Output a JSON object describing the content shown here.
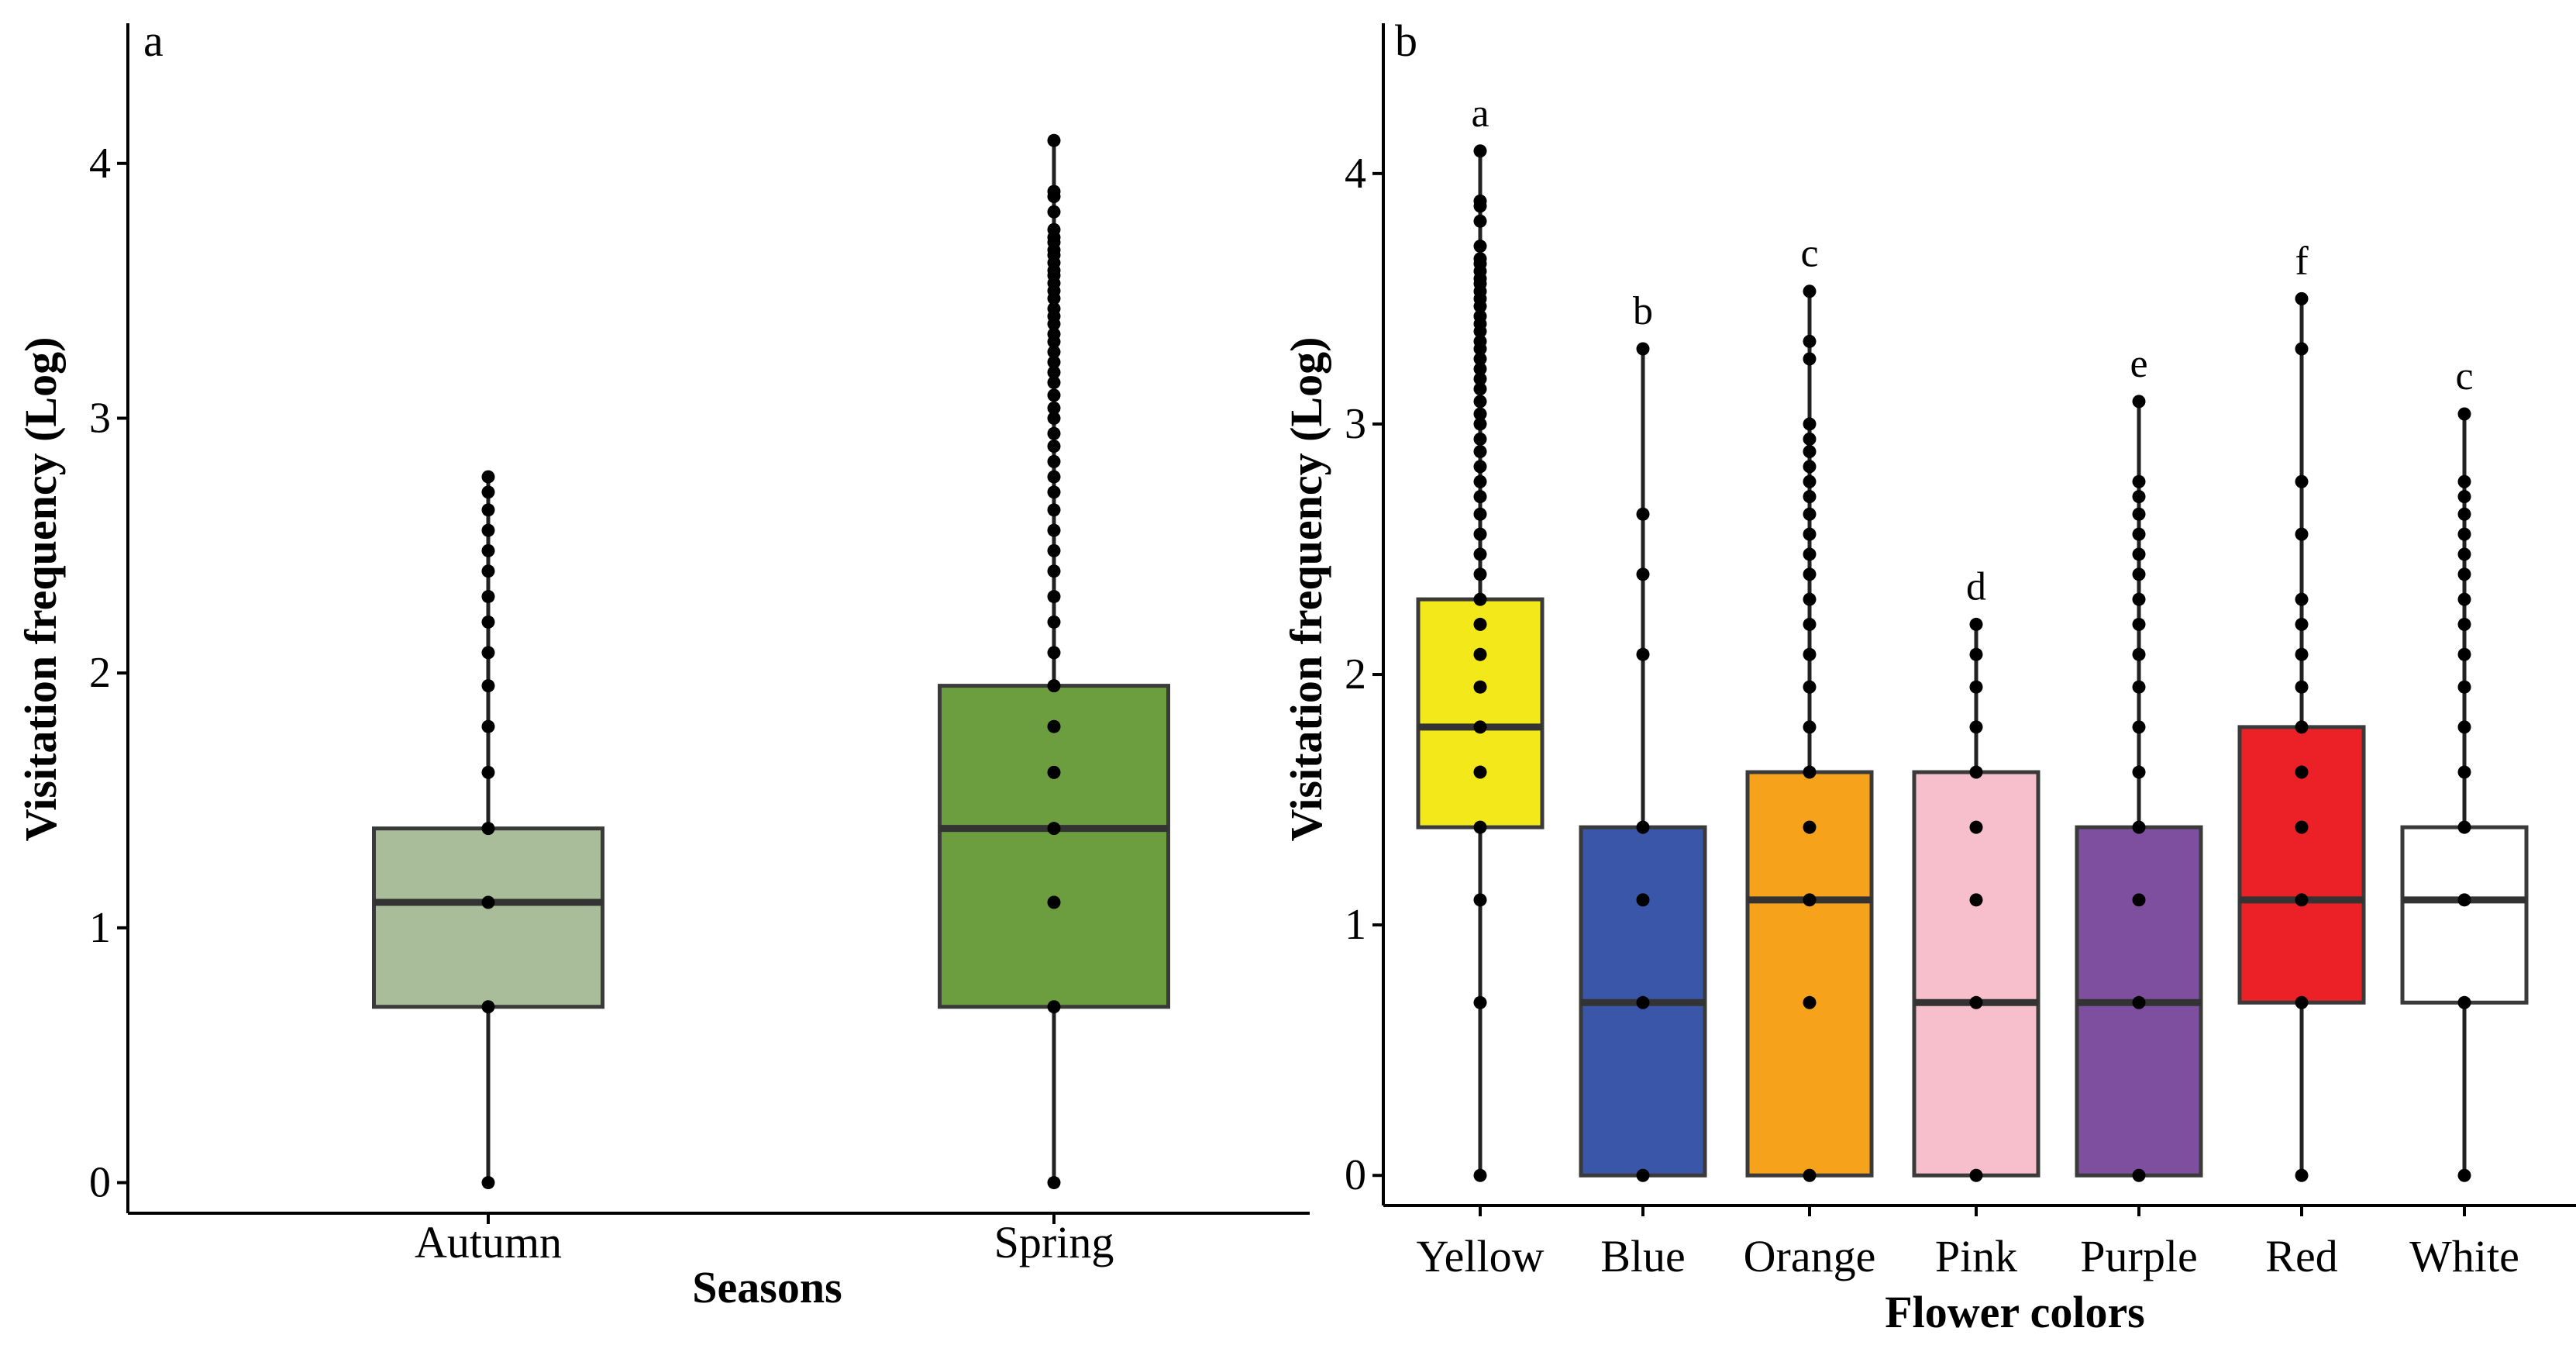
{
  "chart_data": [
    {
      "type": "boxplot",
      "panel_label": "a",
      "xlabel": "Seasons",
      "ylabel": "Visitation frequency (Log)",
      "ylim": [
        -0.12,
        4.55
      ],
      "yticks": [
        0,
        1,
        2,
        3,
        4
      ],
      "categories": [
        "Autumn",
        "Spring"
      ],
      "boxes": [
        {
          "category": "Autumn",
          "color": "#aabd9b",
          "whisker_low": 0.0,
          "q1": 0.69,
          "median": 1.1,
          "q3": 1.39,
          "whisker_high": 2.77,
          "letter": ""
        },
        {
          "category": "Spring",
          "color": "#6c9e3f",
          "whisker_low": 0.0,
          "q1": 0.69,
          "median": 1.39,
          "q3": 1.95,
          "whisker_high": 4.09,
          "letter": ""
        }
      ],
      "points": [
        [
          0.0,
          0.69,
          1.1,
          1.39,
          1.61,
          1.79,
          1.95,
          2.08,
          2.2,
          2.3,
          2.4,
          2.48,
          2.56,
          2.64,
          2.71,
          2.77
        ],
        [
          0.0,
          0.69,
          1.1,
          1.39,
          1.61,
          1.79,
          1.95,
          2.08,
          2.2,
          2.3,
          2.4,
          2.48,
          2.56,
          2.64,
          2.71,
          2.77,
          2.83,
          2.89,
          2.94,
          3.0,
          3.04,
          3.09,
          3.14,
          3.18,
          3.22,
          3.26,
          3.3,
          3.33,
          3.37,
          3.4,
          3.43,
          3.47,
          3.5,
          3.53,
          3.56,
          3.58,
          3.61,
          3.64,
          3.66,
          3.69,
          3.71,
          3.74,
          3.81,
          3.87,
          3.89,
          4.09
        ]
      ]
    },
    {
      "type": "boxplot",
      "panel_label": "b",
      "xlabel": "Flower colors",
      "ylabel": "Visitation frequency (Log)",
      "ylim": [
        -0.12,
        4.6
      ],
      "yticks": [
        0,
        1,
        2,
        3,
        4
      ],
      "categories": [
        "Yellow",
        "Blue",
        "Orange",
        "Pink",
        "Purple",
        "Red",
        "White"
      ],
      "boxes": [
        {
          "category": "Yellow",
          "color": "#f2e81a",
          "whisker_low": 0.0,
          "q1": 1.39,
          "median": 1.79,
          "q3": 2.3,
          "whisker_high": 4.09,
          "letter": "a"
        },
        {
          "category": "Blue",
          "color": "#3a56a8",
          "whisker_low": 0.0,
          "q1": 0.0,
          "median": 0.69,
          "q3": 1.39,
          "whisker_high": 3.3,
          "letter": "b"
        },
        {
          "category": "Orange",
          "color": "#f7a21b",
          "whisker_low": 0.0,
          "q1": 0.0,
          "median": 1.1,
          "q3": 1.61,
          "whisker_high": 3.53,
          "letter": "c"
        },
        {
          "category": "Pink",
          "color": "#f7bfcc",
          "whisker_low": 0.0,
          "q1": 0.0,
          "median": 0.69,
          "q3": 1.61,
          "whisker_high": 2.2,
          "letter": "d"
        },
        {
          "category": "Purple",
          "color": "#7f4f9f",
          "whisker_low": 0.0,
          "q1": 0.0,
          "median": 0.69,
          "q3": 1.39,
          "whisker_high": 3.09,
          "letter": "e"
        },
        {
          "category": "Red",
          "color": "#ec2027",
          "whisker_low": 0.0,
          "q1": 0.69,
          "median": 1.1,
          "q3": 1.79,
          "whisker_high": 3.5,
          "letter": "f"
        },
        {
          "category": "White",
          "color": "#ffffff",
          "whisker_low": 0.0,
          "q1": 0.69,
          "median": 1.1,
          "q3": 1.39,
          "whisker_high": 3.04,
          "letter": "c"
        }
      ],
      "points": [
        [
          0.0,
          0.69,
          1.1,
          1.39,
          1.61,
          1.79,
          1.95,
          2.08,
          2.2,
          2.3,
          2.4,
          2.48,
          2.56,
          2.64,
          2.71,
          2.77,
          2.83,
          2.89,
          2.94,
          3.0,
          3.04,
          3.09,
          3.14,
          3.18,
          3.22,
          3.26,
          3.3,
          3.33,
          3.37,
          3.4,
          3.43,
          3.47,
          3.5,
          3.53,
          3.56,
          3.58,
          3.61,
          3.64,
          3.66,
          3.71,
          3.81,
          3.87,
          3.89,
          4.09
        ],
        [
          0.0,
          0.69,
          1.1,
          1.39,
          2.08,
          2.4,
          2.64,
          3.3
        ],
        [
          0.0,
          0.69,
          1.1,
          1.39,
          1.61,
          1.79,
          1.95,
          2.08,
          2.2,
          2.3,
          2.4,
          2.48,
          2.56,
          2.64,
          2.71,
          2.77,
          2.83,
          2.89,
          2.94,
          3.0,
          3.26,
          3.33,
          3.53
        ],
        [
          0.0,
          0.69,
          1.1,
          1.39,
          1.61,
          1.79,
          1.95,
          2.08,
          2.2
        ],
        [
          0.0,
          0.69,
          1.1,
          1.39,
          1.61,
          1.79,
          1.95,
          2.08,
          2.2,
          2.3,
          2.4,
          2.48,
          2.56,
          2.64,
          2.71,
          2.77,
          3.09
        ],
        [
          0.0,
          0.69,
          1.1,
          1.39,
          1.61,
          1.79,
          1.95,
          2.08,
          2.2,
          2.3,
          2.56,
          2.77,
          3.3,
          3.5
        ],
        [
          0.0,
          0.69,
          1.1,
          1.39,
          1.61,
          1.79,
          1.95,
          2.08,
          2.2,
          2.3,
          2.4,
          2.48,
          2.56,
          2.64,
          2.71,
          2.77,
          3.04
        ]
      ]
    }
  ]
}
